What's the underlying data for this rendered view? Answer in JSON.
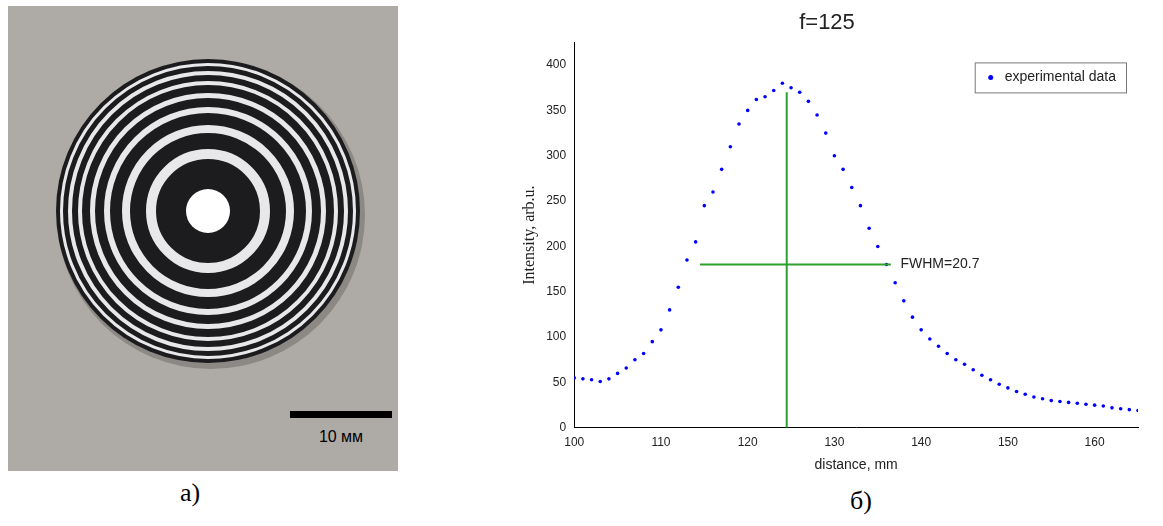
{
  "figure": {
    "panel_labels": [
      "а)",
      "б)"
    ],
    "photo": {
      "scale_bar_label": "10 мм"
    }
  },
  "chart_data": {
    "type": "scatter",
    "title": "f=125",
    "x_label": "distance, mm",
    "y_label": "Intensity, arb.u.",
    "xlim": [
      100,
      165
    ],
    "xticks": [
      100,
      110,
      120,
      130,
      140,
      150,
      160
    ],
    "ylim": [
      0,
      425
    ],
    "yticks": [
      0,
      50,
      100,
      150,
      200,
      250,
      300,
      350,
      400
    ],
    "grid": false,
    "legend": "upper-right",
    "series": [
      {
        "name": "experimental data",
        "color": "#0000ff",
        "marker": "circle",
        "x": [
          100,
          101,
          102,
          103,
          104,
          105,
          106,
          107,
          108,
          109,
          110,
          111,
          112,
          113,
          114,
          115,
          116,
          117,
          118,
          119,
          120,
          121,
          122,
          123,
          124,
          125,
          126,
          127,
          128,
          129,
          130,
          131,
          132,
          133,
          134,
          135,
          136,
          137,
          138,
          139,
          140,
          141,
          142,
          143,
          144,
          145,
          146,
          147,
          148,
          149,
          150,
          151,
          152,
          153,
          154,
          155,
          156,
          157,
          158,
          159,
          160,
          161,
          162,
          163,
          164,
          165
        ],
        "values": [
          55,
          54,
          53,
          51,
          54,
          60,
          66,
          75,
          82,
          95,
          108,
          130,
          155,
          185,
          205,
          245,
          260,
          285,
          310,
          335,
          350,
          362,
          365,
          372,
          380,
          375,
          370,
          360,
          345,
          325,
          300,
          285,
          265,
          245,
          220,
          200,
          180,
          160,
          140,
          122,
          108,
          98,
          90,
          82,
          75,
          70,
          64,
          58,
          53,
          48,
          44,
          40,
          37,
          34,
          32,
          30,
          29,
          28,
          27,
          26,
          25,
          24,
          22,
          21,
          20,
          19
        ]
      }
    ],
    "annotations": [
      {
        "type": "line",
        "x": [
          124.5,
          124.5
        ],
        "y": [
          0,
          370
        ],
        "color": "#2ca02c"
      },
      {
        "type": "line",
        "x": [
          114.5,
          136.5
        ],
        "y": [
          180,
          180
        ],
        "color": "#2ca02c"
      },
      {
        "type": "text",
        "text": "FWHM=20.7",
        "x": 137.5,
        "y": 180
      }
    ]
  }
}
